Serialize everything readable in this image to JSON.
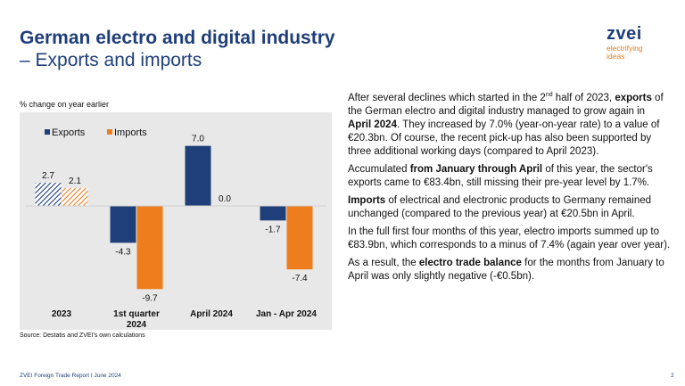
{
  "header": {
    "title_line1": "German electro and digital industry",
    "title_line2": "– Exports and imports"
  },
  "logo": {
    "word": "zvei",
    "tag_line1": "electrifying",
    "tag_line2": "ideas"
  },
  "chart_caption": "% change on year earlier",
  "source": "Source: Destatis and ZVEI's own calculations",
  "footer": {
    "left": "ZVEI Foreign Trade Report I June 2024",
    "page": "2"
  },
  "colors": {
    "exports": "#1f3f7a",
    "imports": "#ee7d1e",
    "title": "#1f3f7a",
    "chart_bg": "#e8e8e8"
  },
  "chart_data": {
    "type": "bar",
    "categories": [
      "2023",
      "1st quarter 2024",
      "April 2024",
      "Jan - Apr 2024"
    ],
    "series": [
      {
        "name": "Exports",
        "values": [
          2.7,
          -4.3,
          7.0,
          -1.7
        ],
        "labels": [
          "2.7",
          "-4.3",
          "7.0",
          "-1.7"
        ]
      },
      {
        "name": "Imports",
        "values": [
          2.1,
          -9.7,
          0.0,
          -7.4
        ],
        "labels": [
          "2.1",
          "-9.7",
          "0.0",
          "-7.4"
        ]
      }
    ],
    "hatched_categories": [
      "2023"
    ],
    "ylim": [
      -10.5,
      8
    ],
    "legend": "top-left",
    "grid": false
  },
  "text": {
    "p1": {
      "a": "After several declines which started in the 2",
      "sup": "nd",
      "b": " half of 2023, ",
      "c": "exports",
      "d": " of the German electro and digital industry managed to grow again in ",
      "e": "April 2024",
      "f": ". They increased by 7.0% (year-on-year rate) to a value of €20.3bn. Of course, the recent pick-up has also been supported by three additional working days (compared to April 2023)."
    },
    "p2": {
      "a": "Accumulated ",
      "b": "from January through April",
      "c": " of this year, the sector's exports came to €83.4bn, still missing their pre-year level by 1.7%."
    },
    "p3": {
      "a": "Imports",
      "b": " of electrical and electronic products to Germany remained unchanged (compared to the previous year) at €20.5bn in April."
    },
    "p4": {
      "a": "In the full first four months of this year, electro imports summed up to €83.9bn, which corresponds to a minus of 7.4% (again year over year)."
    },
    "p5": {
      "a": "As a result, the ",
      "b": "electro trade balance",
      "c": " for the months from January to April was only slightly negative (-€0.5bn)."
    }
  }
}
